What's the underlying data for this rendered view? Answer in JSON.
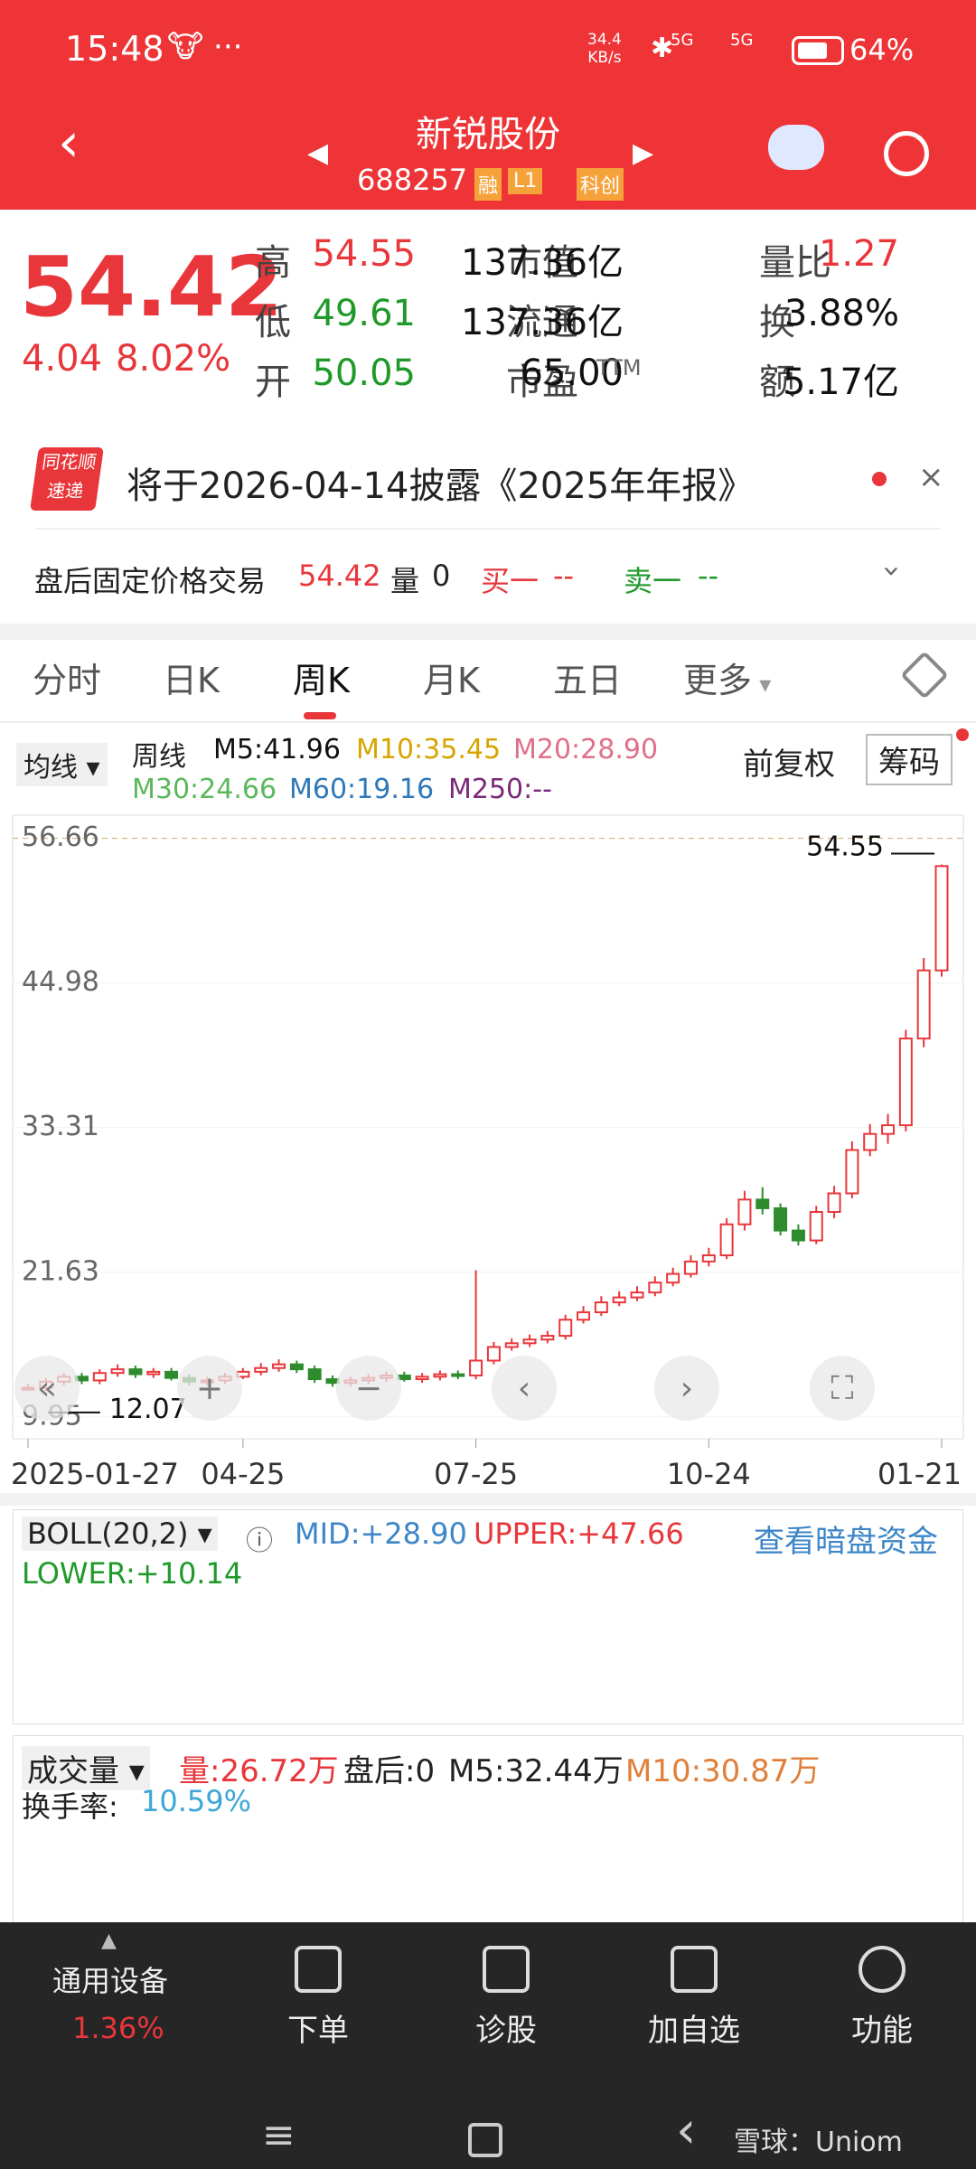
{
  "status_bar": {
    "time": "15:48",
    "speed": "34.4",
    "speed_unit": "KB/s",
    "net1": "5G",
    "net2": "5G",
    "battery": "64%"
  },
  "header": {
    "title": "新锐股份",
    "code": "688257",
    "badges": [
      "融",
      "L1",
      "科创"
    ]
  },
  "quote": {
    "price": "54.42",
    "change": "4.04",
    "change_pct": "8.02%",
    "rows": [
      [
        "高",
        "54.55",
        "市值",
        "137.36亿",
        "量比",
        "1.27"
      ],
      [
        "低",
        "49.61",
        "流通",
        "137.36亿",
        "换",
        "3.88%"
      ],
      [
        "开",
        "50.05",
        "市盈",
        "65.00",
        "额",
        "5.17亿"
      ]
    ],
    "pe_suffix": "TTM"
  },
  "notice": {
    "logo_top": "同花顺",
    "logo_bottom": "速递",
    "text": "将于2026-04-14披露《2025年年报》"
  },
  "after_hours": {
    "label": "盘后固定价格交易",
    "price": "54.42",
    "vol_label": "量",
    "vol": "0",
    "buy_label": "买一",
    "buy": "--",
    "sell_label": "卖一",
    "sell": "--"
  },
  "tabs": [
    "分时",
    "日K",
    "周K",
    "月K",
    "五日",
    "更多"
  ],
  "ma_legend": {
    "selector": "均线",
    "period": "周线",
    "items": [
      "M5:41.96",
      "M10:35.45",
      "M20:28.90",
      "M30:24.66",
      "M60:19.16",
      "M250:--"
    ],
    "adjust": "前复权",
    "chips": "筹码"
  },
  "boll": {
    "selector": "BOLL(20,2)",
    "mid": "MID:+28.90",
    "upper": "UPPER:+47.66",
    "link": "查看暗盘资金",
    "lower": "LOWER:+10.14"
  },
  "volume": {
    "selector": "成交量",
    "vol": "量:26.72万",
    "after": "盘后:0",
    "m5": "M5:32.44万",
    "m10": "M10:30.87万",
    "turnover_label": "换手率:",
    "turnover": "10.59%"
  },
  "bottom_nav": {
    "sector": "通用设备",
    "sector_pct": "1.36%",
    "items": [
      "下单",
      "诊股",
      "加自选",
      "功能"
    ]
  },
  "watermark": "雪球：Uniom",
  "chart_data": {
    "type": "candlestick",
    "categories": [
      "2025-01-27",
      null,
      null,
      null,
      null,
      null,
      null,
      null,
      null,
      null,
      null,
      null,
      "04-25",
      null,
      null,
      null,
      null,
      null,
      null,
      null,
      null,
      null,
      null,
      null,
      null,
      "07-25",
      null,
      null,
      null,
      null,
      null,
      null,
      null,
      null,
      null,
      null,
      null,
      null,
      "10-24",
      null,
      null,
      null,
      null,
      null,
      null,
      null,
      null,
      null,
      null,
      null,
      null,
      "01-21"
    ],
    "open": [
      12.2,
      12.3,
      12.8,
      13.2,
      12.9,
      13.5,
      13.8,
      13.4,
      13.6,
      13.1,
      12.8,
      12.9,
      13.2,
      13.6,
      13.9,
      14.2,
      13.8,
      13.0,
      12.7,
      12.9,
      13.1,
      13.3,
      13.0,
      13.2,
      13.4,
      13.3,
      14.5,
      15.6,
      15.9,
      16.2,
      16.5,
      17.8,
      18.4,
      19.2,
      19.6,
      20.0,
      20.8,
      21.5,
      22.5,
      23.0,
      25.5,
      27.5,
      26.8,
      25.0,
      24.2,
      26.5,
      28.0,
      31.5,
      32.8,
      33.5,
      40.5,
      46.0
    ],
    "high": [
      12.6,
      13.1,
      13.5,
      13.5,
      13.8,
      14.2,
      14.1,
      13.9,
      13.9,
      13.4,
      13.2,
      13.5,
      13.9,
      14.3,
      14.6,
      14.5,
      14.1,
      13.3,
      13.2,
      13.4,
      13.6,
      13.6,
      13.5,
      13.7,
      13.7,
      21.8,
      16.0,
      16.3,
      16.6,
      16.9,
      18.2,
      18.9,
      19.7,
      20.1,
      20.5,
      21.3,
      22.0,
      23.0,
      23.6,
      26.0,
      28.2,
      28.5,
      27.2,
      25.5,
      27.0,
      28.6,
      32.2,
      33.6,
      34.4,
      41.2,
      47.0,
      54.55
    ],
    "low": [
      12.1,
      12.07,
      12.5,
      12.6,
      12.6,
      13.2,
      13.1,
      13.1,
      12.9,
      12.5,
      12.5,
      12.6,
      13.0,
      13.3,
      13.6,
      13.5,
      12.7,
      12.4,
      12.4,
      12.6,
      12.8,
      12.8,
      12.7,
      12.9,
      13.0,
      13.0,
      14.2,
      15.3,
      15.6,
      15.9,
      16.2,
      17.5,
      18.1,
      18.9,
      19.3,
      19.7,
      20.5,
      21.2,
      22.1,
      22.7,
      25.0,
      26.3,
      24.6,
      23.8,
      23.9,
      26.0,
      27.6,
      31.0,
      32.0,
      33.0,
      39.8,
      45.5
    ],
    "close": [
      12.3,
      12.8,
      13.2,
      12.9,
      13.5,
      13.8,
      13.4,
      13.6,
      13.1,
      12.8,
      12.9,
      13.2,
      13.6,
      13.9,
      14.2,
      13.8,
      13.0,
      12.7,
      12.9,
      13.1,
      13.3,
      13.0,
      13.2,
      13.4,
      13.3,
      14.5,
      15.6,
      15.9,
      16.2,
      16.5,
      17.8,
      18.4,
      19.2,
      19.6,
      20.0,
      20.8,
      21.5,
      22.5,
      23.0,
      25.5,
      27.5,
      26.8,
      25.0,
      24.2,
      26.5,
      28.0,
      31.5,
      32.8,
      33.5,
      40.5,
      46.0,
      54.42
    ],
    "up_color": "#e8363a",
    "down_color": "#2e8b2e",
    "ylim": [
      8.19,
      58.53
    ],
    "yticks": [
      56.66,
      44.98,
      33.31,
      21.63,
      9.95
    ],
    "grid": true
  }
}
